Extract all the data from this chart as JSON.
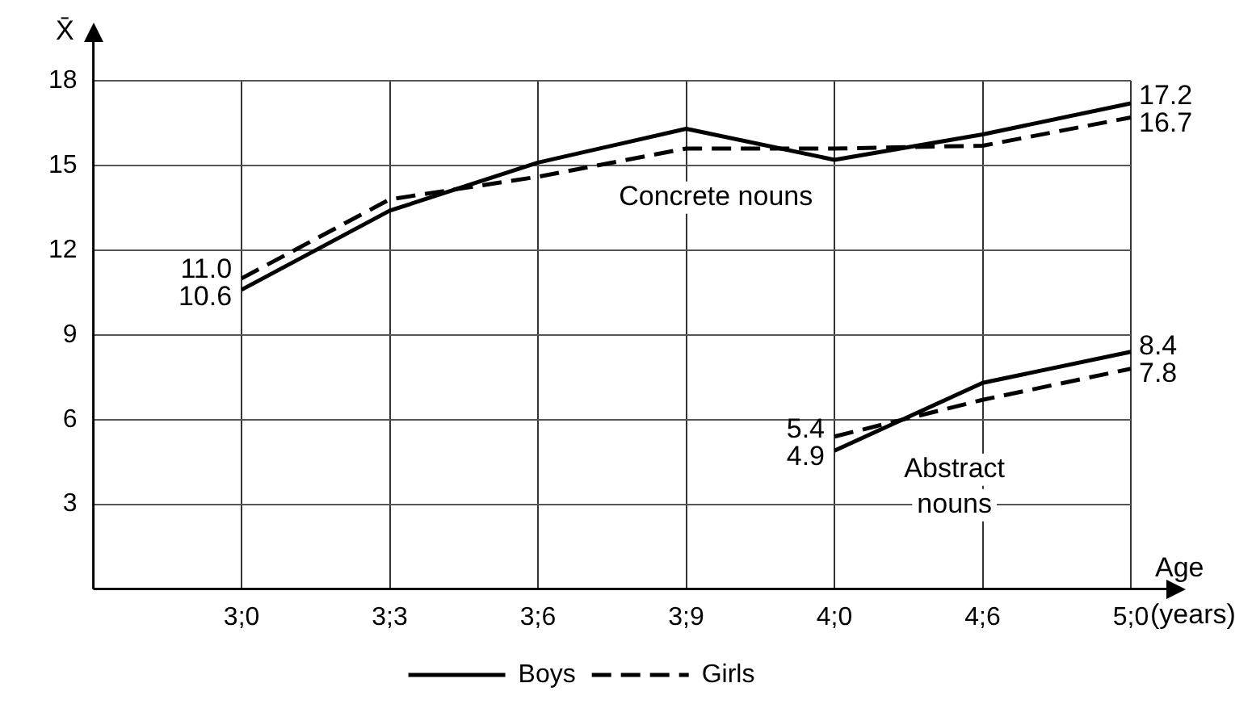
{
  "chart_data": {
    "type": "line",
    "ylabel": "X̄",
    "xlabel": "Age (years)",
    "categories": [
      null,
      "3;0",
      "3;3",
      "3;6",
      "3;9",
      "4;0",
      "4;6",
      "5;0"
    ],
    "ylim": [
      0,
      18
    ],
    "yticks": [
      3,
      6,
      9,
      12,
      15,
      18
    ],
    "grid": true,
    "legend": "bottom",
    "marker": "none",
    "series": [
      {
        "name": "Boys",
        "color": "#000000",
        "line_style": "solid",
        "values": [
          null,
          10.6,
          13.4,
          15.1,
          16.3,
          15.2,
          16.1,
          17.2
        ],
        "value_labels": [
          null,
          "10.6",
          null,
          null,
          null,
          null,
          null,
          "17.2"
        ]
      },
      {
        "name": "Girls",
        "color": "#000000",
        "line_style": "dashed",
        "values": [
          null,
          11.0,
          13.8,
          14.6,
          15.6,
          15.6,
          15.7,
          16.7
        ],
        "value_labels": [
          null,
          "11.0",
          null,
          null,
          null,
          null,
          null,
          "16.7"
        ]
      },
      {
        "color": "#000000",
        "line_style": "solid",
        "values": [
          null,
          null,
          null,
          null,
          null,
          4.9,
          7.3,
          8.4
        ],
        "value_labels": [
          null,
          null,
          null,
          null,
          null,
          "4.9",
          null,
          "8.4"
        ]
      },
      {
        "color": "#000000",
        "line_style": "dashed",
        "values": [
          null,
          null,
          null,
          null,
          null,
          5.4,
          6.7,
          7.8
        ],
        "value_labels": [
          null,
          null,
          null,
          null,
          null,
          "5.4",
          null,
          "7.8"
        ]
      }
    ],
    "annotations": [
      "Concrete nouns",
      "Abstract\nnouns"
    ]
  }
}
